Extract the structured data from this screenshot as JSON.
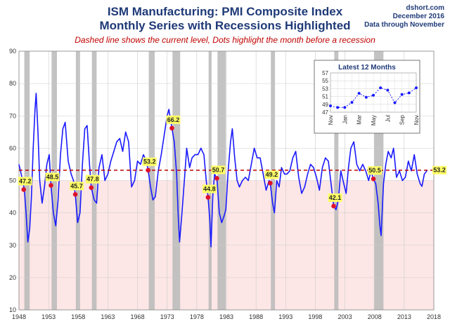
{
  "header": {
    "title_line1": "ISM Manufacturing: PMI Composite Index",
    "title_line2": "Monthly Series with Recessions Highlighted",
    "subtitle": "Dashed line shows the current level, Dots highlight the month before a recession",
    "source": "dshort.com",
    "date": "December 2016",
    "data_note": "Data through November"
  },
  "colors": {
    "series": "#1a1aff",
    "recession": "#b8b8b8",
    "below50": "#fde6e6",
    "dashed": "#c00000",
    "dot": "#e0102a",
    "label_bg": "#ffff66",
    "title": "#1f3a78"
  },
  "chart_data": [
    {
      "type": "line",
      "title": "ISM Manufacturing: PMI Composite Index",
      "xlim": [
        1948,
        2018
      ],
      "ylim": [
        10,
        90
      ],
      "x_ticks": [
        "1948",
        "1953",
        "1958",
        "1963",
        "1968",
        "1973",
        "1978",
        "1983",
        "1988",
        "1993",
        "1998",
        "2003",
        "2008",
        "2013",
        "2018"
      ],
      "y_ticks": [
        10,
        20,
        30,
        40,
        50,
        60,
        70,
        80,
        90
      ],
      "current_level": 53.2,
      "current_level_label": "53.2",
      "grid": true,
      "recessions": [
        [
          1948.9,
          1949.8
        ],
        [
          1953.5,
          1954.4
        ],
        [
          1957.6,
          1958.3
        ],
        [
          1960.3,
          1961.1
        ],
        [
          1969.9,
          1970.9
        ],
        [
          1973.9,
          1975.2
        ],
        [
          1980.0,
          1980.5
        ],
        [
          1981.5,
          1982.9
        ],
        [
          1990.5,
          1991.2
        ],
        [
          2001.2,
          2001.9
        ],
        [
          2007.9,
          2009.5
        ]
      ],
      "recession_markers": [
        {
          "x": 1948.8,
          "y": 47.2,
          "label": "47.2"
        },
        {
          "x": 1953.4,
          "y": 48.5,
          "label": "48.5"
        },
        {
          "x": 1957.5,
          "y": 45.7,
          "label": "45.7"
        },
        {
          "x": 1960.2,
          "y": 47.8,
          "label": "47.8"
        },
        {
          "x": 1969.8,
          "y": 53.2,
          "label": "53.2"
        },
        {
          "x": 1973.8,
          "y": 66.2,
          "label": "66.2"
        },
        {
          "x": 1979.9,
          "y": 44.8,
          "label": "44.8"
        },
        {
          "x": 1981.4,
          "y": 50.7,
          "label": "50.7"
        },
        {
          "x": 1990.4,
          "y": 49.2,
          "label": "49.2"
        },
        {
          "x": 2001.1,
          "y": 42.1,
          "label": "42.1"
        },
        {
          "x": 2007.8,
          "y": 50.5,
          "label": "50.5"
        }
      ],
      "series": [
        {
          "points": [
            [
              1948.0,
              55
            ],
            [
              1948.5,
              51
            ],
            [
              1948.9,
              47.2
            ],
            [
              1949.2,
              40
            ],
            [
              1949.5,
              31
            ],
            [
              1949.8,
              35
            ],
            [
              1950.1,
              45
            ],
            [
              1950.4,
              60
            ],
            [
              1950.7,
              72
            ],
            [
              1950.9,
              77
            ],
            [
              1951.2,
              65
            ],
            [
              1951.5,
              50
            ],
            [
              1951.9,
              43
            ],
            [
              1952.3,
              48
            ],
            [
              1952.7,
              55
            ],
            [
              1953.1,
              58
            ],
            [
              1953.4,
              48.5
            ],
            [
              1953.8,
              40
            ],
            [
              1954.2,
              36
            ],
            [
              1954.6,
              44
            ],
            [
              1955.0,
              58
            ],
            [
              1955.4,
              66
            ],
            [
              1955.8,
              68
            ],
            [
              1956.3,
              56
            ],
            [
              1956.8,
              52
            ],
            [
              1957.2,
              50
            ],
            [
              1957.5,
              45.7
            ],
            [
              1957.9,
              37
            ],
            [
              1958.3,
              40
            ],
            [
              1958.7,
              55
            ],
            [
              1959.1,
              66
            ],
            [
              1959.5,
              67
            ],
            [
              1959.9,
              55
            ],
            [
              1960.2,
              47.8
            ],
            [
              1960.7,
              44
            ],
            [
              1961.1,
              43
            ],
            [
              1961.5,
              54
            ],
            [
              1962.0,
              58
            ],
            [
              1962.5,
              50
            ],
            [
              1963.0,
              52
            ],
            [
              1963.5,
              56
            ],
            [
              1964.0,
              59
            ],
            [
              1964.5,
              62
            ],
            [
              1965.0,
              63
            ],
            [
              1965.5,
              59
            ],
            [
              1966.0,
              65
            ],
            [
              1966.5,
              62
            ],
            [
              1967.0,
              48
            ],
            [
              1967.5,
              50
            ],
            [
              1968.0,
              56
            ],
            [
              1968.5,
              55
            ],
            [
              1969.0,
              58
            ],
            [
              1969.5,
              56
            ],
            [
              1969.8,
              53.2
            ],
            [
              1970.2,
              48
            ],
            [
              1970.6,
              44
            ],
            [
              1971.0,
              45
            ],
            [
              1971.5,
              53
            ],
            [
              1972.0,
              58
            ],
            [
              1972.5,
              64
            ],
            [
              1973.0,
              70
            ],
            [
              1973.3,
              72
            ],
            [
              1973.8,
              66.2
            ],
            [
              1974.2,
              62
            ],
            [
              1974.6,
              52
            ],
            [
              1974.9,
              38
            ],
            [
              1975.1,
              31
            ],
            [
              1975.5,
              40
            ],
            [
              1975.9,
              50
            ],
            [
              1976.3,
              60
            ],
            [
              1976.8,
              54
            ],
            [
              1977.2,
              57
            ],
            [
              1977.7,
              58
            ],
            [
              1978.2,
              58
            ],
            [
              1978.7,
              60
            ],
            [
              1979.2,
              58
            ],
            [
              1979.6,
              50
            ],
            [
              1979.9,
              44.8
            ],
            [
              1980.2,
              38
            ],
            [
              1980.4,
              29.5
            ],
            [
              1980.7,
              45
            ],
            [
              1981.0,
              52
            ],
            [
              1981.4,
              50.7
            ],
            [
              1981.8,
              40
            ],
            [
              1982.2,
              37
            ],
            [
              1982.6,
              39
            ],
            [
              1982.9,
              41
            ],
            [
              1983.3,
              53
            ],
            [
              1983.7,
              62
            ],
            [
              1984.0,
              66
            ],
            [
              1984.4,
              57
            ],
            [
              1984.8,
              50
            ],
            [
              1985.2,
              48
            ],
            [
              1985.7,
              50
            ],
            [
              1986.2,
              51
            ],
            [
              1986.7,
              50
            ],
            [
              1987.2,
              55
            ],
            [
              1987.7,
              60
            ],
            [
              1988.2,
              57
            ],
            [
              1988.7,
              57
            ],
            [
              1989.2,
              52
            ],
            [
              1989.7,
              47
            ],
            [
              1990.2,
              50
            ],
            [
              1990.4,
              49.2
            ],
            [
              1990.8,
              43
            ],
            [
              1991.1,
              40
            ],
            [
              1991.5,
              50
            ],
            [
              1991.9,
              48
            ],
            [
              1992.3,
              54
            ],
            [
              1992.8,
              52
            ],
            [
              1993.2,
              52
            ],
            [
              1993.7,
              53
            ],
            [
              1994.2,
              57
            ],
            [
              1994.7,
              59
            ],
            [
              1995.2,
              51
            ],
            [
              1995.7,
              46
            ],
            [
              1996.2,
              48
            ],
            [
              1996.7,
              52
            ],
            [
              1997.2,
              55
            ],
            [
              1997.7,
              54
            ],
            [
              1998.2,
              51
            ],
            [
              1998.7,
              47
            ],
            [
              1999.2,
              54
            ],
            [
              1999.7,
              57
            ],
            [
              2000.2,
              56
            ],
            [
              2000.6,
              50
            ],
            [
              2001.1,
              42.1
            ],
            [
              2001.5,
              41
            ],
            [
              2001.9,
              44
            ],
            [
              2002.3,
              53
            ],
            [
              2002.8,
              49
            ],
            [
              2003.2,
              46
            ],
            [
              2003.6,
              54
            ],
            [
              2004.0,
              60
            ],
            [
              2004.5,
              62
            ],
            [
              2005.0,
              55
            ],
            [
              2005.5,
              53
            ],
            [
              2006.0,
              55
            ],
            [
              2006.5,
              53
            ],
            [
              2007.0,
              50
            ],
            [
              2007.4,
              53
            ],
            [
              2007.8,
              50.5
            ],
            [
              2008.2,
              49
            ],
            [
              2008.6,
              43
            ],
            [
              2008.9,
              36
            ],
            [
              2009.1,
              33
            ],
            [
              2009.5,
              49
            ],
            [
              2009.9,
              55
            ],
            [
              2010.3,
              59
            ],
            [
              2010.8,
              57
            ],
            [
              2011.2,
              60
            ],
            [
              2011.7,
              51
            ],
            [
              2012.2,
              53
            ],
            [
              2012.7,
              50
            ],
            [
              2013.2,
              51
            ],
            [
              2013.7,
              56
            ],
            [
              2014.2,
              53
            ],
            [
              2014.7,
              58
            ],
            [
              2015.2,
              52
            ],
            [
              2015.7,
              49
            ],
            [
              2016.0,
              48.2
            ],
            [
              2016.4,
              52
            ],
            [
              2016.9,
              53.2
            ]
          ]
        }
      ]
    },
    {
      "type": "line",
      "title": "Latest 12 Months",
      "ylim": [
        47,
        57
      ],
      "y_ticks": [
        47,
        49,
        51,
        53,
        55,
        57
      ],
      "x_ticks": [
        "Nov",
        "Jan",
        "Mar",
        "May",
        "Jul",
        "Sep",
        "Nov"
      ],
      "months": [
        "Nov",
        "Dec",
        "Jan",
        "Feb",
        "Mar",
        "Apr",
        "May",
        "Jun",
        "Jul",
        "Aug",
        "Sep",
        "Oct",
        "Nov"
      ],
      "values": [
        48.6,
        48.2,
        48.2,
        49.5,
        51.8,
        50.8,
        51.3,
        53.2,
        52.6,
        49.4,
        51.5,
        51.9,
        53.2
      ],
      "grid": true
    }
  ]
}
